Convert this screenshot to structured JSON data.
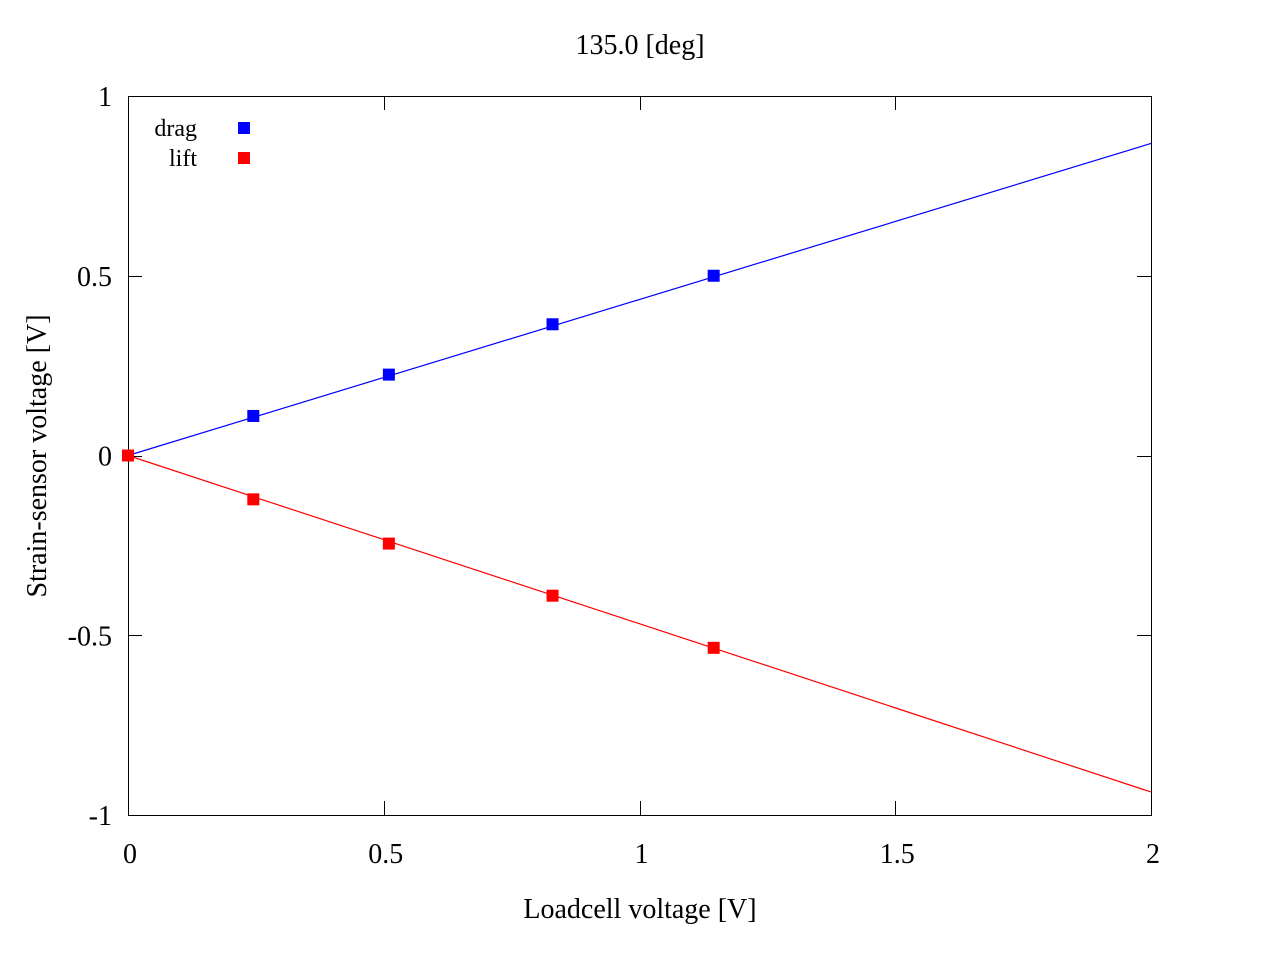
{
  "chart_data": {
    "type": "scatter",
    "title": "135.0 [deg]",
    "xlabel": "Loadcell voltage [V]",
    "ylabel": "Strain-sensor voltage [V]",
    "xlim": [
      0,
      2
    ],
    "ylim": [
      -1,
      1
    ],
    "xticks": [
      0,
      0.5,
      1,
      1.5,
      2
    ],
    "xtick_labels": [
      "0",
      "0.5",
      "1",
      "1.5",
      "2"
    ],
    "yticks": [
      -1,
      -0.5,
      0,
      0.5,
      1
    ],
    "ytick_labels": [
      "-1",
      "-0.5",
      "0",
      "0.5",
      "1"
    ],
    "grid": false,
    "legend_position": "top-left",
    "series": [
      {
        "name": "drag",
        "color": "#0000ff",
        "marker": "square",
        "x": [
          0,
          0.245,
          0.51,
          0.83,
          1.145
        ],
        "y": [
          0,
          0.11,
          0.225,
          0.365,
          0.5
        ],
        "fit_line": {
          "slope": 0.434,
          "intercept": 0
        }
      },
      {
        "name": "lift",
        "color": "#ff0000",
        "marker": "square",
        "x": [
          0,
          0.245,
          0.51,
          0.83,
          1.145
        ],
        "y": [
          0,
          -0.122,
          -0.245,
          -0.39,
          -0.535
        ],
        "fit_line": {
          "slope": -0.468,
          "intercept": 0
        }
      }
    ]
  }
}
